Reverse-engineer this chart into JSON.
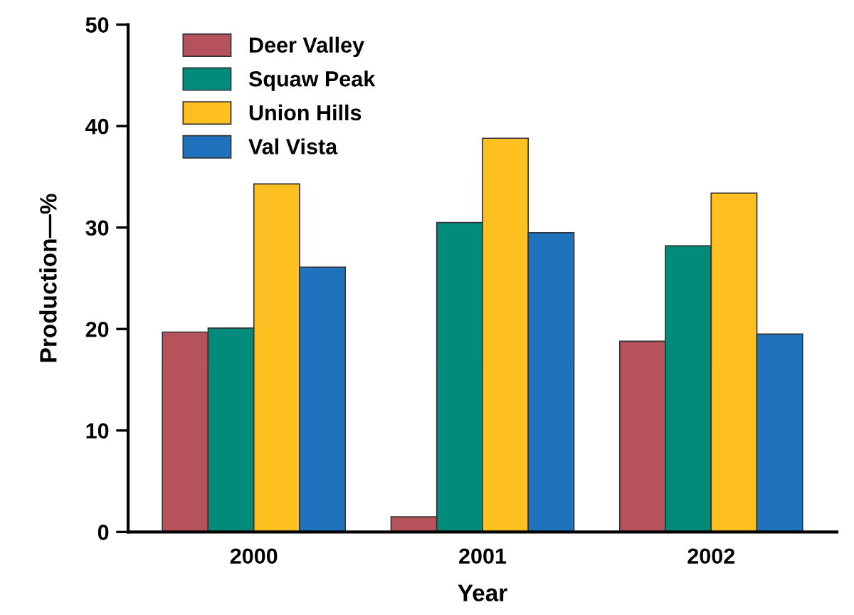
{
  "chart_data": {
    "type": "bar",
    "xlabel": "Year",
    "ylabel": "Production—%",
    "categories": [
      "2000",
      "2001",
      "2002"
    ],
    "series": [
      {
        "name": "Deer Valley",
        "color": "#b5525c",
        "values": [
          19.7,
          1.5,
          18.8
        ]
      },
      {
        "name": "Squaw Peak",
        "color": "#008b7b",
        "values": [
          20.1,
          30.5,
          28.2
        ]
      },
      {
        "name": "Union Hills",
        "color": "#fdc020",
        "values": [
          34.3,
          38.8,
          33.4
        ]
      },
      {
        "name": "Val Vista",
        "color": "#1f72bc",
        "values": [
          26.1,
          29.5,
          19.5
        ]
      }
    ],
    "ylim": [
      0,
      50
    ],
    "yticks": [
      0,
      10,
      20,
      30,
      40,
      50
    ],
    "grid": false,
    "legend": "top left"
  }
}
